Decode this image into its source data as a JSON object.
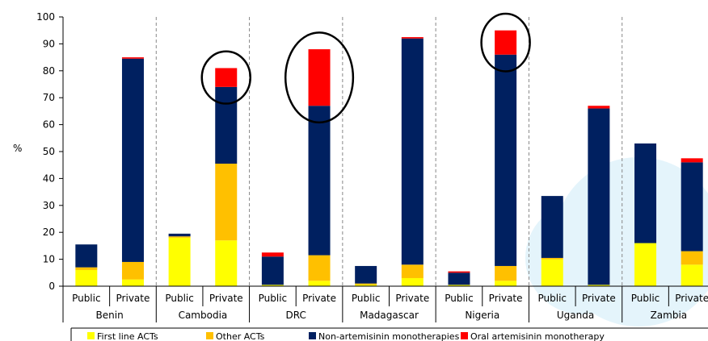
{
  "chart_data": {
    "type": "bar",
    "stacked": true,
    "ylabel": "%",
    "ylim": [
      0,
      100
    ],
    "yticks": [
      0,
      10,
      20,
      30,
      40,
      50,
      60,
      70,
      80,
      90,
      100
    ],
    "countries": [
      "Benin",
      "Cambodia",
      "DRC",
      "Madagascar",
      "Nigeria",
      "Uganda",
      "Zambia"
    ],
    "sectors": [
      "Public",
      "Private"
    ],
    "categories": [
      "Benin Public",
      "Benin Private",
      "Cambodia Public",
      "Cambodia Private",
      "DRC Public",
      "DRC Private",
      "Madagascar Public",
      "Madagascar Private",
      "Nigeria Public",
      "Nigeria Private",
      "Uganda Public",
      "Uganda Private",
      "Zambia Public",
      "Zambia Private"
    ],
    "series": [
      {
        "name": "First line ACTs",
        "color": "#ffff00",
        "values": [
          6,
          2.5,
          18,
          17,
          0.5,
          2,
          0.5,
          3,
          0.5,
          2,
          10,
          0.5,
          16,
          8
        ]
      },
      {
        "name": "Other ACTs",
        "color": "#ffc000",
        "values": [
          1,
          6.5,
          0.5,
          28.5,
          0,
          9.5,
          0.5,
          5,
          0,
          5.5,
          0.5,
          0,
          0,
          5
        ]
      },
      {
        "name": "Non-artemisinin monotherapies",
        "color": "#002060",
        "values": [
          8.5,
          75.5,
          1,
          28.5,
          10.5,
          55.5,
          6.5,
          84,
          4.5,
          78.5,
          23,
          65.5,
          37,
          33
        ]
      },
      {
        "name": "Oral artemisinin monotherapy",
        "color": "#ff0000",
        "values": [
          0,
          0.5,
          0,
          7,
          1.5,
          21,
          0,
          0.5,
          0.5,
          9,
          0,
          1,
          0,
          1.5
        ]
      }
    ],
    "highlighted": [
      "Cambodia Private",
      "DRC Private",
      "Nigeria Private"
    ],
    "legend_position": "bottom",
    "grid": false
  }
}
